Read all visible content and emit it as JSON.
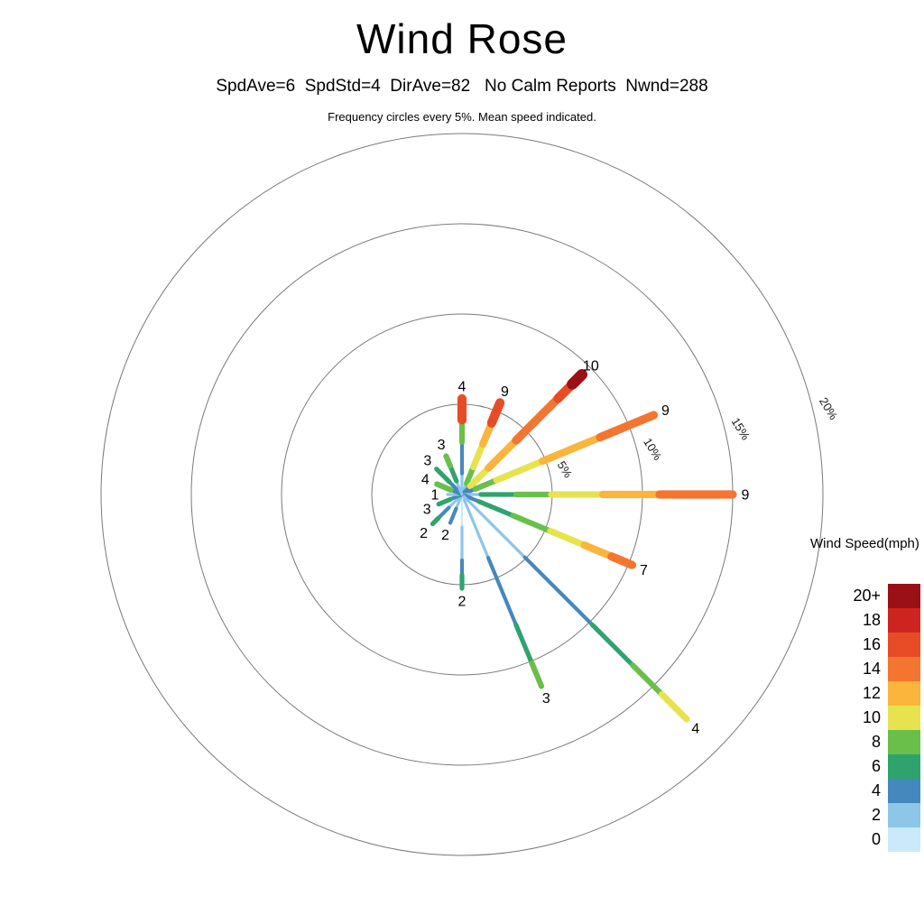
{
  "title": "Wind Rose",
  "subtitle": "SpdAve=6  SpdStd=4  DirAve=82   No Calm Reports  Nwnd=288",
  "note": "Frequency circles every 5%. Mean speed indicated.",
  "legend": {
    "title": "Wind Speed(mph)",
    "entries": [
      {
        "label": "20+",
        "color": "#9b1016"
      },
      {
        "label": "18",
        "color": "#ce2420"
      },
      {
        "label": "16",
        "color": "#e84c26"
      },
      {
        "label": "14",
        "color": "#f4752f"
      },
      {
        "label": "12",
        "color": "#fbb43c"
      },
      {
        "label": "10",
        "color": "#e7e34e"
      },
      {
        "label": "8",
        "color": "#6abf4b"
      },
      {
        "label": "6",
        "color": "#2fa36e"
      },
      {
        "label": "4",
        "color": "#4588bd"
      },
      {
        "label": "2",
        "color": "#8ec6e8"
      },
      {
        "label": "0",
        "color": "#cbe9fa"
      }
    ]
  },
  "chart_data": {
    "type": "windrose",
    "title": "Wind Rose",
    "stats": {
      "SpdAve": 6,
      "SpdStd": 4,
      "DirAve": 82,
      "calm": "No Calm Reports",
      "Nwnd": 288
    },
    "speed_units": "mph",
    "frequency_ring_step_pct": 5,
    "frequency_rings": [
      {
        "pct": 5,
        "label": "5%"
      },
      {
        "pct": 10,
        "label": "10%"
      },
      {
        "pct": 15,
        "label": "15%"
      },
      {
        "pct": 20,
        "label": "20%"
      }
    ],
    "speed_bins_mph": [
      0,
      2,
      4,
      6,
      8,
      10,
      12,
      14,
      16,
      18,
      20
    ],
    "bin_colors": {
      "0": "#cbe9fa",
      "2": "#8ec6e8",
      "4": "#4588bd",
      "6": "#2fa36e",
      "8": "#6abf4b",
      "10": "#e7e34e",
      "12": "#fbb43c",
      "14": "#f4752f",
      "16": "#e84c26",
      "18": "#ce2420",
      "20": "#9b1016"
    },
    "directions": [
      {
        "dir": "N",
        "compass_deg": 0,
        "frequency_pct": 5.3,
        "mean_speed_mph": 4,
        "segments": [
          {
            "to": 0.22,
            "speed": 2
          },
          {
            "to": 0.55,
            "speed": 4
          },
          {
            "to": 0.78,
            "speed": 8
          },
          {
            "to": 1,
            "speed": 16
          }
        ]
      },
      {
        "dir": "NNE",
        "compass_deg": 22.5,
        "frequency_pct": 5.5,
        "mean_speed_mph": 9,
        "segments": [
          {
            "to": 0.12,
            "speed": 2
          },
          {
            "to": 0.3,
            "speed": 8
          },
          {
            "to": 0.55,
            "speed": 10
          },
          {
            "to": 0.78,
            "speed": 12
          },
          {
            "to": 1,
            "speed": 16
          }
        ]
      },
      {
        "dir": "NE",
        "compass_deg": 45,
        "frequency_pct": 9.4,
        "mean_speed_mph": 10,
        "segments": [
          {
            "to": 0.07,
            "speed": 4
          },
          {
            "to": 0.22,
            "speed": 10
          },
          {
            "to": 0.45,
            "speed": 12
          },
          {
            "to": 0.8,
            "speed": 14
          },
          {
            "to": 0.92,
            "speed": 16
          },
          {
            "to": 1,
            "speed": 20
          }
        ]
      },
      {
        "dir": "ENE",
        "compass_deg": 67.5,
        "frequency_pct": 11.5,
        "mean_speed_mph": 9,
        "segments": [
          {
            "to": 0.07,
            "speed": 4
          },
          {
            "to": 0.18,
            "speed": 8
          },
          {
            "to": 0.42,
            "speed": 10
          },
          {
            "to": 0.72,
            "speed": 12
          },
          {
            "to": 1,
            "speed": 14
          }
        ]
      },
      {
        "dir": "E",
        "compass_deg": 90,
        "frequency_pct": 15.0,
        "mean_speed_mph": 9,
        "segments": [
          {
            "to": 0.07,
            "speed": 2
          },
          {
            "to": 0.2,
            "speed": 6
          },
          {
            "to": 0.33,
            "speed": 8
          },
          {
            "to": 0.52,
            "speed": 10
          },
          {
            "to": 0.73,
            "speed": 12
          },
          {
            "to": 1,
            "speed": 14
          }
        ]
      },
      {
        "dir": "ESE",
        "compass_deg": 112.5,
        "frequency_pct": 10.2,
        "mean_speed_mph": 7,
        "segments": [
          {
            "to": 0.1,
            "speed": 4
          },
          {
            "to": 0.3,
            "speed": 6
          },
          {
            "to": 0.52,
            "speed": 8
          },
          {
            "to": 0.72,
            "speed": 10
          },
          {
            "to": 0.88,
            "speed": 12
          },
          {
            "to": 1,
            "speed": 14
          }
        ]
      },
      {
        "dir": "SE",
        "compass_deg": 135,
        "frequency_pct": 17.6,
        "mean_speed_mph": 4,
        "segments": [
          {
            "to": 0.28,
            "speed": 2
          },
          {
            "to": 0.58,
            "speed": 4
          },
          {
            "to": 0.76,
            "speed": 6
          },
          {
            "to": 0.89,
            "speed": 8
          },
          {
            "to": 1,
            "speed": 10
          }
        ]
      },
      {
        "dir": "SSE",
        "compass_deg": 157.5,
        "frequency_pct": 11.5,
        "mean_speed_mph": 3,
        "segments": [
          {
            "to": 0.33,
            "speed": 2
          },
          {
            "to": 0.68,
            "speed": 4
          },
          {
            "to": 0.88,
            "speed": 6
          },
          {
            "to": 1,
            "speed": 8
          }
        ]
      },
      {
        "dir": "S",
        "compass_deg": 180,
        "frequency_pct": 5.2,
        "mean_speed_mph": 2,
        "segments": [
          {
            "to": 0.35,
            "speed": 0
          },
          {
            "to": 0.7,
            "speed": 2
          },
          {
            "to": 0.86,
            "speed": 4
          },
          {
            "to": 1,
            "speed": 6
          }
        ]
      },
      {
        "dir": "SSW",
        "compass_deg": 202.5,
        "frequency_pct": 1.7,
        "mean_speed_mph": 2,
        "segments": [
          {
            "to": 0.5,
            "speed": 2
          },
          {
            "to": 1,
            "speed": 4
          }
        ]
      },
      {
        "dir": "SW",
        "compass_deg": 225,
        "frequency_pct": 2.3,
        "mean_speed_mph": 2,
        "segments": [
          {
            "to": 0.45,
            "speed": 2
          },
          {
            "to": 0.8,
            "speed": 4
          },
          {
            "to": 1,
            "speed": 6
          }
        ]
      },
      {
        "dir": "WSW",
        "compass_deg": 247.5,
        "frequency_pct": 1.4,
        "mean_speed_mph": 3,
        "segments": [
          {
            "to": 0.5,
            "speed": 4
          },
          {
            "to": 1,
            "speed": 6
          }
        ]
      },
      {
        "dir": "W",
        "compass_deg": 270,
        "frequency_pct": 0.8,
        "mean_speed_mph": 1,
        "segments": [
          {
            "to": 1,
            "speed": 2
          }
        ]
      },
      {
        "dir": "WNW",
        "compass_deg": 292.5,
        "frequency_pct": 1.5,
        "mean_speed_mph": 4,
        "segments": [
          {
            "to": 0.45,
            "speed": 4
          },
          {
            "to": 1,
            "speed": 8
          }
        ]
      },
      {
        "dir": "NW",
        "compass_deg": 315,
        "frequency_pct": 2.0,
        "mean_speed_mph": 3,
        "segments": [
          {
            "to": 0.5,
            "speed": 4
          },
          {
            "to": 1,
            "speed": 6
          }
        ]
      },
      {
        "dir": "NNW",
        "compass_deg": 337.5,
        "frequency_pct": 2.3,
        "mean_speed_mph": 3,
        "segments": [
          {
            "to": 0.35,
            "speed": 2
          },
          {
            "to": 0.75,
            "speed": 6
          },
          {
            "to": 1,
            "speed": 8
          }
        ]
      }
    ]
  }
}
